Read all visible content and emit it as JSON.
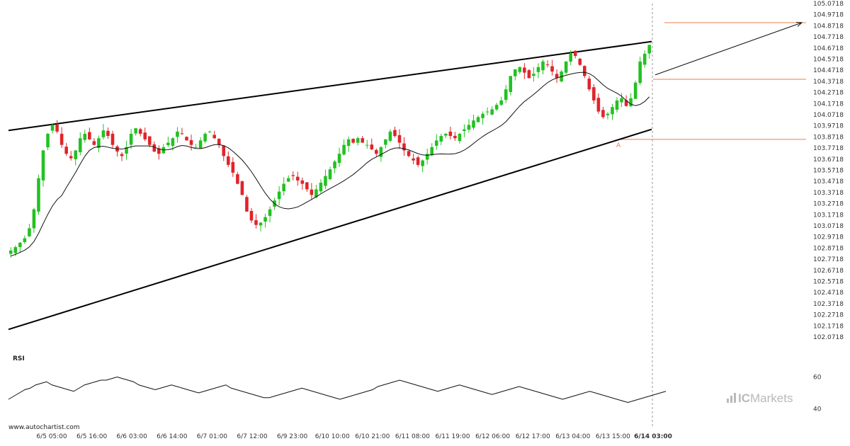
{
  "chart_data": {
    "type": "candlestick",
    "source": "www.autochartist.com",
    "brand": {
      "prefix": "IC",
      "name": "Markets"
    },
    "y_axis": {
      "ticks": [
        "105.0718",
        "104.9718",
        "104.8718",
        "104.7718",
        "104.6718",
        "104.5718",
        "104.4718",
        "104.3718",
        "104.2718",
        "104.1718",
        "104.0718",
        "103.9718",
        "103.8718",
        "103.7718",
        "103.6718",
        "103.5718",
        "103.4718",
        "103.3718",
        "103.2718",
        "103.1718",
        "103.0718",
        "102.9718",
        "102.8718",
        "102.7718",
        "102.6718",
        "102.5718",
        "102.4718",
        "102.3718",
        "102.2718",
        "102.1718",
        "102.0718"
      ],
      "range": [
        102.0,
        105.1
      ]
    },
    "x_axis": {
      "ticks": [
        "6/5 05:00",
        "6/5 16:00",
        "6/6 03:00",
        "6/6 14:00",
        "6/7 01:00",
        "6/7 12:00",
        "6/9 23:00",
        "6/10 10:00",
        "6/10 21:00",
        "6/11 08:00",
        "6/11 19:00",
        "6/12 06:00",
        "6/12 17:00",
        "6/13 04:00",
        "6/13 15:00",
        "6/14 03:00"
      ],
      "current": "6/14 03:00",
      "bars": 230
    },
    "pattern": {
      "type": "rising wedge",
      "upper": {
        "start": 103.93,
        "end": 104.73
      },
      "lower": {
        "start": 102.14,
        "end": 103.94
      },
      "point_label": "A"
    },
    "levels": [
      104.9,
      104.39,
      103.85
    ],
    "forecast": {
      "from": 104.43,
      "to": 104.9
    },
    "prices": [
      102.85,
      102.88,
      102.92,
      102.96,
      103.05,
      103.22,
      103.5,
      103.75,
      103.9,
      103.98,
      103.92,
      103.8,
      103.72,
      103.68,
      103.75,
      103.86,
      103.9,
      103.85,
      103.8,
      103.86,
      103.93,
      103.88,
      103.8,
      103.74,
      103.7,
      103.78,
      103.9,
      103.95,
      103.9,
      103.85,
      103.8,
      103.74,
      103.72,
      103.78,
      103.82,
      103.86,
      103.92,
      103.9,
      103.84,
      103.8,
      103.78,
      103.84,
      103.9,
      103.92,
      103.86,
      103.8,
      103.7,
      103.62,
      103.55,
      103.45,
      103.35,
      103.2,
      103.12,
      103.08,
      103.1,
      103.15,
      103.22,
      103.3,
      103.38,
      103.45,
      103.5,
      103.52,
      103.48,
      103.45,
      103.4,
      103.35,
      103.4,
      103.46,
      103.52,
      103.58,
      103.65,
      103.72,
      103.8,
      103.85,
      103.82,
      103.86,
      103.82,
      103.8,
      103.76,
      103.72,
      103.78,
      103.85,
      103.92,
      103.88,
      103.82,
      103.75,
      103.7,
      103.66,
      103.62,
      103.66,
      103.72,
      103.78,
      103.84,
      103.88,
      103.9,
      103.88,
      103.86,
      103.9,
      103.94,
      103.98,
      104.02,
      104.05,
      104.08,
      104.1,
      104.12,
      104.16,
      104.2,
      104.3,
      104.42,
      104.48,
      104.5,
      104.45,
      104.4,
      104.44,
      104.5,
      104.55,
      104.52,
      104.46,
      104.4,
      104.46,
      104.55,
      104.62,
      104.6,
      104.52,
      104.42,
      104.3,
      104.2,
      104.1,
      104.05,
      104.08,
      104.14,
      104.2,
      104.22,
      104.15,
      104.22,
      104.36,
      104.55,
      104.62,
      104.7
    ]
  },
  "rsi": {
    "title": "RSI",
    "levels": [
      "60",
      "40"
    ],
    "range": [
      30,
      70
    ],
    "values": [
      46,
      48,
      50,
      52,
      53,
      55,
      56,
      57,
      55,
      54,
      53,
      52,
      51,
      53,
      55,
      56,
      57,
      58,
      58,
      59,
      60,
      59,
      58,
      57,
      55,
      54,
      53,
      52,
      53,
      54,
      55,
      54,
      53,
      52,
      51,
      50,
      51,
      52,
      53,
      54,
      55,
      53,
      52,
      51,
      50,
      49,
      48,
      47,
      47,
      48,
      49,
      50,
      51,
      52,
      53,
      52,
      51,
      50,
      49,
      48,
      47,
      46,
      47,
      48,
      49,
      50,
      51,
      52,
      54,
      55,
      56,
      57,
      58,
      57,
      56,
      55,
      54,
      53,
      52,
      51,
      52,
      53,
      54,
      55,
      54,
      53,
      52,
      51,
      50,
      49,
      50,
      51,
      52,
      53,
      54,
      53,
      52,
      51,
      50,
      49,
      48,
      47,
      46,
      47,
      48,
      49,
      50,
      51,
      50,
      49,
      48,
      47,
      46,
      45,
      44,
      45,
      46,
      47,
      48,
      49,
      50,
      51
    ]
  }
}
